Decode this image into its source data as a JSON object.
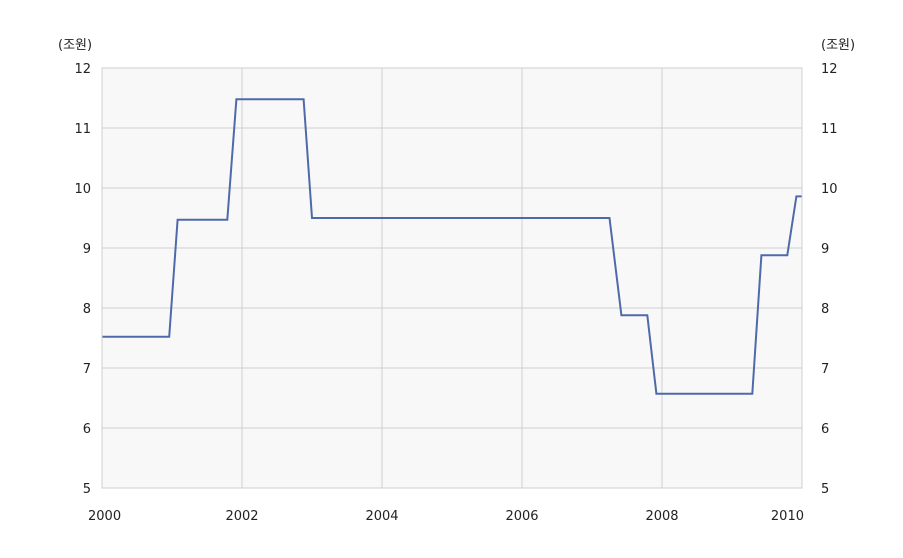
{
  "chart_data": {
    "type": "line",
    "title": "",
    "xlabel": "",
    "ylabel": "(조원)",
    "ylabel_right": "(조원)",
    "xlim": [
      2000,
      2010
    ],
    "ylim": [
      5,
      12
    ],
    "x_ticks": [
      "2000",
      "2002",
      "2004",
      "2006",
      "2008",
      "2010"
    ],
    "y_ticks": [
      "5",
      "6",
      "7",
      "8",
      "9",
      "10",
      "11",
      "12"
    ],
    "grid": true,
    "legend": "none",
    "colors": {
      "line": "#4e6aaa",
      "plot_bg": "#f8f8f8",
      "grid": "#cfcfcf"
    },
    "series": [
      {
        "x": [
          2000.0,
          2000.96,
          2001.08,
          2001.79,
          2001.92,
          2002.88,
          2003.0,
          2007.25,
          2007.42,
          2007.79,
          2007.92,
          2009.29,
          2009.42,
          2009.79,
          2009.92,
          2010.0
        ],
        "values": [
          7.52,
          7.52,
          9.47,
          9.47,
          11.48,
          11.48,
          9.5,
          9.5,
          7.88,
          7.88,
          6.57,
          6.57,
          8.88,
          8.88,
          9.86,
          9.86
        ]
      }
    ]
  }
}
